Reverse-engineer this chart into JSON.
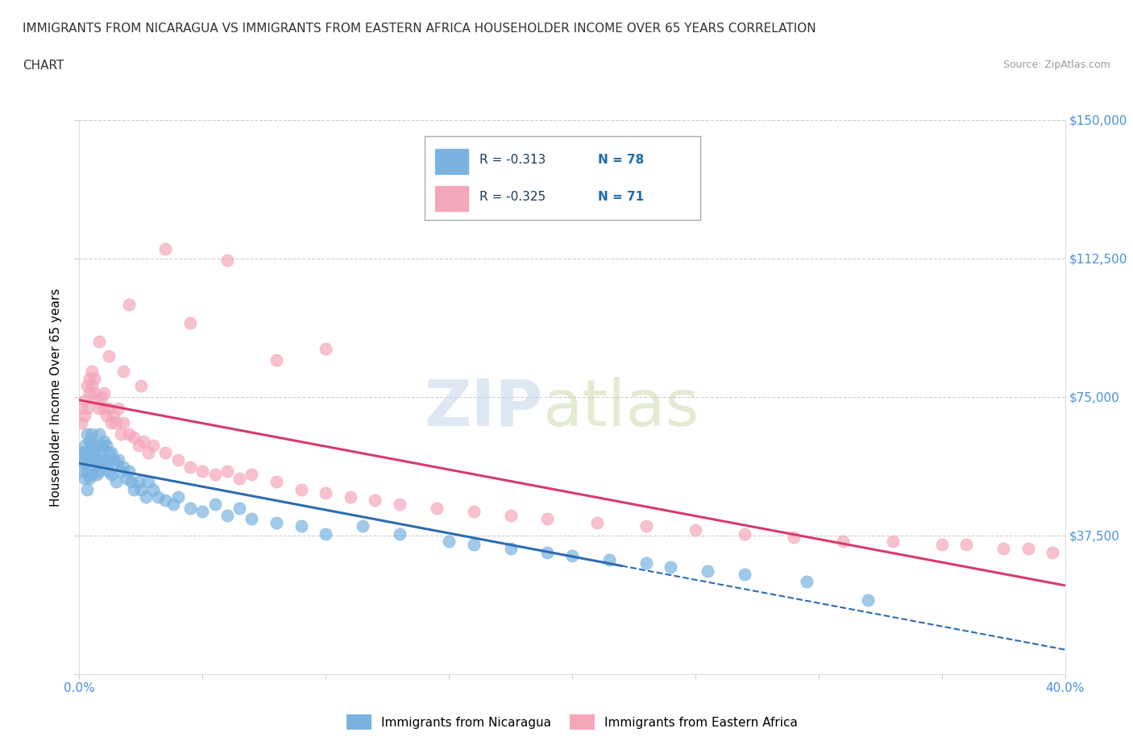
{
  "title_line1": "IMMIGRANTS FROM NICARAGUA VS IMMIGRANTS FROM EASTERN AFRICA HOUSEHOLDER INCOME OVER 65 YEARS CORRELATION",
  "title_line2": "CHART",
  "source_text": "Source: ZipAtlas.com",
  "r_nicaragua": -0.313,
  "n_nicaragua": 78,
  "r_eastern_africa": -0.325,
  "n_eastern_africa": 71,
  "ylabel": "Householder Income Over 65 years",
  "xlim": [
    0.0,
    0.4
  ],
  "ylim": [
    0,
    150000
  ],
  "yticks": [
    0,
    37500,
    75000,
    112500,
    150000
  ],
  "ytick_labels": [
    "",
    "$37,500",
    "$75,000",
    "$112,500",
    "$150,000"
  ],
  "xticks": [
    0.0,
    0.05,
    0.1,
    0.15,
    0.2,
    0.25,
    0.3,
    0.35,
    0.4
  ],
  "xtick_labels": [
    "0.0%",
    "",
    "",
    "",
    "",
    "",
    "",
    "",
    "40.0%"
  ],
  "color_nicaragua": "#7ab3e0",
  "color_eastern_africa": "#f4a7b9",
  "trend_color_nicaragua": "#2b6cb0",
  "trend_color_eastern_africa": "#d63b6e",
  "legend_label_nicaragua": "Immigrants from Nicaragua",
  "legend_label_eastern_africa": "Immigrants from Eastern Africa",
  "nicaragua_x": [
    0.001,
    0.001,
    0.001,
    0.002,
    0.002,
    0.002,
    0.002,
    0.003,
    0.003,
    0.003,
    0.003,
    0.004,
    0.004,
    0.004,
    0.005,
    0.005,
    0.005,
    0.005,
    0.006,
    0.006,
    0.007,
    0.007,
    0.007,
    0.008,
    0.008,
    0.008,
    0.009,
    0.009,
    0.01,
    0.01,
    0.011,
    0.011,
    0.012,
    0.012,
    0.013,
    0.013,
    0.014,
    0.015,
    0.015,
    0.016,
    0.017,
    0.018,
    0.019,
    0.02,
    0.021,
    0.022,
    0.024,
    0.025,
    0.027,
    0.028,
    0.03,
    0.032,
    0.035,
    0.038,
    0.04,
    0.045,
    0.05,
    0.055,
    0.06,
    0.065,
    0.07,
    0.08,
    0.09,
    0.1,
    0.115,
    0.13,
    0.15,
    0.16,
    0.175,
    0.19,
    0.2,
    0.215,
    0.23,
    0.24,
    0.255,
    0.27,
    0.295,
    0.32
  ],
  "nicaragua_y": [
    60000,
    58000,
    55000,
    62000,
    60000,
    57000,
    53000,
    65000,
    60000,
    55000,
    50000,
    63000,
    58000,
    53000,
    65000,
    62000,
    58000,
    54000,
    60000,
    56000,
    62000,
    58000,
    54000,
    65000,
    60000,
    55000,
    62000,
    57000,
    63000,
    58000,
    62000,
    57000,
    60000,
    55000,
    60000,
    54000,
    58000,
    57000,
    52000,
    58000,
    55000,
    56000,
    53000,
    55000,
    52000,
    50000,
    52000,
    50000,
    48000,
    52000,
    50000,
    48000,
    47000,
    46000,
    48000,
    45000,
    44000,
    46000,
    43000,
    45000,
    42000,
    41000,
    40000,
    38000,
    40000,
    38000,
    36000,
    35000,
    34000,
    33000,
    32000,
    31000,
    30000,
    29000,
    28000,
    27000,
    25000,
    20000
  ],
  "eastern_africa_x": [
    0.001,
    0.001,
    0.002,
    0.002,
    0.003,
    0.003,
    0.004,
    0.004,
    0.005,
    0.005,
    0.006,
    0.006,
    0.007,
    0.008,
    0.009,
    0.01,
    0.01,
    0.011,
    0.012,
    0.013,
    0.014,
    0.015,
    0.016,
    0.017,
    0.018,
    0.02,
    0.022,
    0.024,
    0.026,
    0.028,
    0.03,
    0.035,
    0.04,
    0.045,
    0.05,
    0.055,
    0.06,
    0.065,
    0.07,
    0.08,
    0.09,
    0.1,
    0.11,
    0.12,
    0.13,
    0.145,
    0.16,
    0.175,
    0.19,
    0.21,
    0.23,
    0.25,
    0.27,
    0.29,
    0.31,
    0.33,
    0.35,
    0.36,
    0.375,
    0.385,
    0.395,
    0.06,
    0.035,
    0.045,
    0.08,
    0.1,
    0.02,
    0.008,
    0.012,
    0.018,
    0.025
  ],
  "eastern_africa_y": [
    72000,
    68000,
    74000,
    70000,
    78000,
    72000,
    80000,
    76000,
    82000,
    78000,
    80000,
    76000,
    74000,
    72000,
    75000,
    72000,
    76000,
    70000,
    72000,
    68000,
    70000,
    68000,
    72000,
    65000,
    68000,
    65000,
    64000,
    62000,
    63000,
    60000,
    62000,
    60000,
    58000,
    56000,
    55000,
    54000,
    55000,
    53000,
    54000,
    52000,
    50000,
    49000,
    48000,
    47000,
    46000,
    45000,
    44000,
    43000,
    42000,
    41000,
    40000,
    39000,
    38000,
    37000,
    36000,
    36000,
    35000,
    35000,
    34000,
    34000,
    33000,
    112000,
    115000,
    95000,
    85000,
    88000,
    100000,
    90000,
    86000,
    82000,
    78000
  ]
}
